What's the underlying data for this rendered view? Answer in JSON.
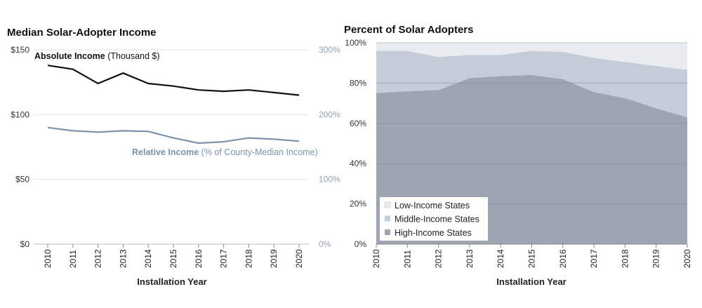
{
  "chart_data": [
    {
      "type": "line",
      "title": "Median Solar-Adopter Income",
      "xlabel": "Installation Year",
      "x": [
        "2010",
        "2011",
        "2012",
        "2013",
        "2014",
        "2015",
        "2016",
        "2017",
        "2018",
        "2019",
        "2020"
      ],
      "y_left": {
        "ticks": [
          "$0",
          "$50",
          "$100",
          "$150"
        ],
        "range": [
          0,
          150
        ]
      },
      "y_right": {
        "ticks": [
          "0%",
          "100%",
          "200%",
          "300%"
        ],
        "range": [
          0,
          300
        ],
        "color": "#8ea3b8"
      },
      "series": [
        {
          "name": "Absolute Income",
          "name_suffix": "(Thousand $)",
          "axis": "left",
          "color": "#111111",
          "values": [
            138,
            135,
            124,
            132,
            124,
            122,
            119,
            118,
            119,
            117,
            115
          ]
        },
        {
          "name": "Relative Income",
          "name_suffix": "(% of County-Median Income)",
          "axis": "right",
          "color": "#7d93a8",
          "values": [
            180,
            175,
            173,
            175,
            174,
            164,
            156,
            158,
            164,
            162,
            159
          ]
        }
      ]
    },
    {
      "type": "area",
      "stacked": true,
      "title": "Percent of Solar Adopters",
      "xlabel": "Installation Year",
      "x": [
        "2010",
        "2011",
        "2012",
        "2013",
        "2014",
        "2015",
        "2016",
        "2017",
        "2018",
        "2019",
        "2020"
      ],
      "y": {
        "ticks": [
          "0%",
          "20%",
          "40%",
          "60%",
          "80%",
          "100%"
        ],
        "range": [
          0,
          100
        ]
      },
      "grid": true,
      "legend_position": "bottom-left",
      "series": [
        {
          "name": "Low-Income States",
          "color": "#e9ecf1",
          "values": [
            4,
            4,
            7,
            6,
            6,
            4,
            4.5,
            7.5,
            9.5,
            11.5,
            13.5
          ]
        },
        {
          "name": "Middle-Income States",
          "color": "#c4ccd7",
          "values": [
            21,
            20,
            16.5,
            11.5,
            10.5,
            12,
            13.5,
            17,
            18,
            21,
            23.5
          ]
        },
        {
          "name": "High-Income States",
          "color": "#9ea5b1",
          "values": [
            75,
            76,
            76.5,
            82.5,
            83.5,
            84,
            82,
            75.5,
            72.5,
            67.5,
            63
          ]
        }
      ]
    }
  ]
}
